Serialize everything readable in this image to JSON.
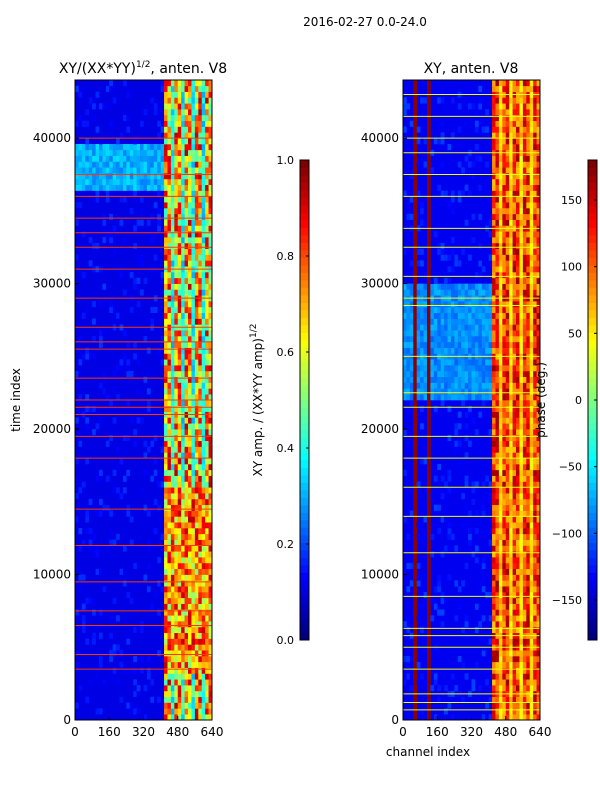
{
  "suptitle": "2016-02-27 0.0-24.0",
  "colormap": [
    "#00007f",
    "#0000ff",
    "#007fff",
    "#00ffff",
    "#7fff7f",
    "#ffff00",
    "#ff7f00",
    "#ff0000",
    "#7f0000"
  ],
  "chart_data": [
    {
      "type": "heatmap",
      "title": "XY/(XX*YY)",
      "title_sup": "1/2",
      "title_suffix": ", anten. V8",
      "xlabel": "",
      "ylabel": "time index",
      "xlim": [
        0,
        640
      ],
      "ylim": [
        0,
        44000
      ],
      "xticks": [
        0,
        160,
        320,
        480,
        640
      ],
      "yticks": [
        0,
        10000,
        20000,
        30000,
        40000
      ],
      "colorbar": {
        "label": "XY amp. / (XX*YY amp)",
        "label_sup": "1/2",
        "range": [
          0.0,
          1.0
        ],
        "ticks": [
          0.0,
          0.2,
          0.4,
          0.6,
          0.8,
          1.0
        ],
        "tick_labels": [
          "0.0",
          "0.2",
          "0.4",
          "0.6",
          "0.8",
          "1.0"
        ]
      },
      "features": {
        "background_value": 0.1,
        "bright_band_channels": [
          410,
          640
        ],
        "bright_band_value_range": [
          0.2,
          0.95
        ],
        "low_bright_region_times": [
          3000,
          16000
        ],
        "horizontal_lines_times": [
          3500,
          4500,
          6500,
          7500,
          9500,
          12000,
          14500,
          18000,
          19500,
          21000,
          21500,
          22000,
          23500,
          25500,
          26000,
          27000,
          29000,
          31000,
          32500,
          33500,
          34500,
          36000,
          37500,
          40000
        ],
        "cyan_patch_times": [
          36500,
          39500
        ]
      }
    },
    {
      "type": "heatmap",
      "title": "XY, anten. V8",
      "xlabel": "channel index",
      "ylabel": "",
      "xlim": [
        0,
        640
      ],
      "ylim": [
        0,
        44000
      ],
      "xticks": [
        0,
        160,
        320,
        480,
        640
      ],
      "yticks": [
        0,
        10000,
        20000,
        30000,
        40000
      ],
      "colorbar": {
        "label": "phase (deg.)",
        "range": [
          -180,
          180
        ],
        "ticks": [
          -150,
          -100,
          -50,
          0,
          50,
          100,
          150
        ],
        "tick_labels": [
          "−150",
          "−100",
          "−50",
          "0",
          "50",
          "100",
          "150"
        ]
      },
      "features": {
        "background_value": -140,
        "red_stripe_channels": [
          55,
          115
        ],
        "bright_band_channels": [
          410,
          640
        ],
        "bright_band_value_range": [
          20,
          170
        ],
        "light_blue_region_times": [
          22000,
          30000
        ],
        "horizontal_lines_times": [
          700,
          1200,
          1800,
          3500,
          5000,
          5800,
          6300,
          8500,
          11500,
          14000,
          16000,
          18000,
          19500,
          21500,
          22500,
          25000,
          28500,
          29000,
          30500,
          32500,
          33800,
          36000,
          37500,
          39000,
          40000,
          41500,
          43000
        ]
      }
    }
  ]
}
